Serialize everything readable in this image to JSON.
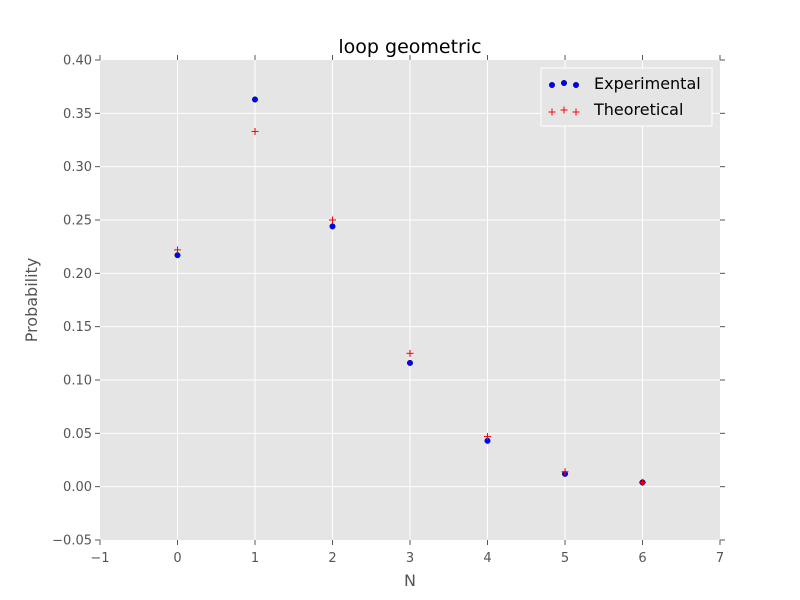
{
  "chart_data": {
    "type": "scatter",
    "title": "loop geometric",
    "xlabel": "N",
    "ylabel": "Probability",
    "xlim": [
      -1,
      7
    ],
    "ylim": [
      -0.05,
      0.4
    ],
    "xticks": [
      "−1",
      "0",
      "1",
      "2",
      "3",
      "4",
      "5",
      "6",
      "7"
    ],
    "yticks": [
      "−0.05",
      "0.00",
      "0.05",
      "0.10",
      "0.15",
      "0.20",
      "0.25",
      "0.30",
      "0.35",
      "0.40"
    ],
    "grid": true,
    "legend_position": "top-right",
    "series": [
      {
        "name": "Experimental",
        "marker": "circle",
        "color": "#0000ff",
        "x": [
          0,
          1,
          2,
          3,
          4,
          5,
          6
        ],
        "y": [
          0.217,
          0.363,
          0.244,
          0.116,
          0.043,
          0.012,
          0.004
        ]
      },
      {
        "name": "Theoretical",
        "marker": "plus",
        "color": "#ff0000",
        "x": [
          0,
          1,
          2,
          3,
          4,
          5,
          6
        ],
        "y": [
          0.222,
          0.333,
          0.25,
          0.125,
          0.047,
          0.014,
          0.004
        ]
      }
    ]
  },
  "colors": {
    "plot_background": "#e5e5e5",
    "grid": "#ffffff",
    "figure_background": "#ffffff"
  }
}
